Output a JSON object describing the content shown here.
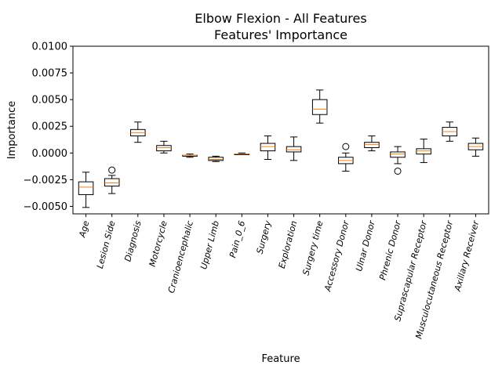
{
  "chart_data": {
    "type": "box",
    "title": [
      "Elbow Flexion - All Features",
      "Features' Importance"
    ],
    "xlabel": "Feature",
    "ylabel": "Importance",
    "ylim": [
      -0.0057,
      0.01
    ],
    "yticks": [
      -0.005,
      -0.0025,
      0.0,
      0.0025,
      0.005,
      0.0075,
      0.01
    ],
    "ytick_labels": [
      "−0.0050",
      "−0.0025",
      "0.0000",
      "0.0025",
      "0.0050",
      "0.0075",
      "0.0100"
    ],
    "grid": false,
    "box_color": "#000000",
    "median_color": "#ff7f0e",
    "categories": [
      "Age",
      "Lesion Side",
      "Diagnosis",
      "Motorcycle",
      "Cranioencephalic",
      "Upper Limb",
      "Pain_0_6",
      "Surgery",
      "Exploration",
      "Surgery time",
      "Accessory Donor",
      "Ulnar Donor",
      "Phrenic Donor",
      "Suprascapular Receptor",
      "Musculocutaneous Receptor",
      "Axillary Receiver"
    ],
    "boxes": [
      {
        "whislo": -0.0051,
        "q1": -0.0039,
        "med": -0.0032,
        "q3": -0.0027,
        "whishi": -0.0018,
        "fliers": []
      },
      {
        "whislo": -0.0038,
        "q1": -0.0031,
        "med": -0.0028,
        "q3": -0.0024,
        "whishi": -0.0021,
        "fliers": [
          -0.0016
        ]
      },
      {
        "whislo": 0.001,
        "q1": 0.0016,
        "med": 0.0019,
        "q3": 0.0022,
        "whishi": 0.0029,
        "fliers": []
      },
      {
        "whislo": 0.0,
        "q1": 0.0002,
        "med": 0.0005,
        "q3": 0.0007,
        "whishi": 0.0011,
        "fliers": []
      },
      {
        "whislo": -0.0004,
        "q1": -0.0003,
        "med": -0.0002,
        "q3": -0.0002,
        "whishi": -0.0001,
        "fliers": []
      },
      {
        "whislo": -0.0008,
        "q1": -0.0007,
        "med": -0.0006,
        "q3": -0.0004,
        "whishi": -0.0003,
        "fliers": []
      },
      {
        "whislo": -0.0001,
        "q1": -0.0001,
        "med": -0.0001,
        "q3": -0.0001,
        "whishi": 0.0,
        "fliers": []
      },
      {
        "whislo": -0.0006,
        "q1": 0.0002,
        "med": 0.0006,
        "q3": 0.0009,
        "whishi": 0.0016,
        "fliers": []
      },
      {
        "whislo": -0.0007,
        "q1": 0.0001,
        "med": 0.0003,
        "q3": 0.0006,
        "whishi": 0.0015,
        "fliers": []
      },
      {
        "whislo": 0.0028,
        "q1": 0.0036,
        "med": 0.0041,
        "q3": 0.005,
        "whishi": 0.0059,
        "fliers": []
      },
      {
        "whislo": -0.0017,
        "q1": -0.001,
        "med": -0.0007,
        "q3": -0.0004,
        "whishi": 0.0,
        "fliers": [
          0.0006
        ]
      },
      {
        "whislo": 0.0002,
        "q1": 0.0005,
        "med": 0.0008,
        "q3": 0.001,
        "whishi": 0.0016,
        "fliers": []
      },
      {
        "whislo": -0.001,
        "q1": -0.0004,
        "med": -0.0001,
        "q3": 0.0001,
        "whishi": 0.0006,
        "fliers": [
          -0.0017
        ]
      },
      {
        "whislo": -0.0009,
        "q1": -0.0001,
        "med": 0.0002,
        "q3": 0.0004,
        "whishi": 0.0013,
        "fliers": []
      },
      {
        "whislo": 0.0011,
        "q1": 0.0016,
        "med": 0.002,
        "q3": 0.0024,
        "whishi": 0.0029,
        "fliers": []
      },
      {
        "whislo": -0.0003,
        "q1": 0.0003,
        "med": 0.0006,
        "q3": 0.0009,
        "whishi": 0.0014,
        "fliers": []
      }
    ]
  }
}
